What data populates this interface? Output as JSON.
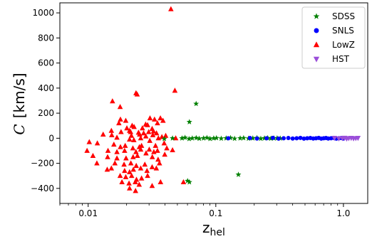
{
  "chart_data": {
    "type": "scatter",
    "xlabel": "z",
    "xlabel_sub": "hel",
    "ylabel_symbol": "C",
    "ylabel_unit": "[km/s]",
    "x_scale": "log",
    "xlim": [
      0.006,
      1.55
    ],
    "ylim": [
      -520,
      1080
    ],
    "x_ticks": [
      {
        "value": 0.01,
        "label": "0.01"
      },
      {
        "value": 0.1,
        "label": "0.1"
      },
      {
        "value": 1.0,
        "label": "1.0"
      }
    ],
    "y_ticks": [
      {
        "value": -400,
        "label": "−400"
      },
      {
        "value": -200,
        "label": "−200"
      },
      {
        "value": 0,
        "label": "0"
      },
      {
        "value": 200,
        "label": "200"
      },
      {
        "value": 400,
        "label": "400"
      },
      {
        "value": 600,
        "label": "600"
      },
      {
        "value": 800,
        "label": "800"
      },
      {
        "value": 1000,
        "label": "1000"
      }
    ],
    "grid": false,
    "legend_position": "top-right",
    "series": [
      {
        "name": "LowZ",
        "marker": "triangle-up",
        "color": "#ff0000",
        "points": [
          [
            0.0445,
            1030
          ],
          [
            0.0478,
            380
          ],
          [
            0.0155,
            295
          ],
          [
            0.0178,
            250
          ],
          [
            0.0237,
            360
          ],
          [
            0.0242,
            350
          ],
          [
            0.0179,
            150
          ],
          [
            0.0197,
            140
          ],
          [
            0.0305,
            160
          ],
          [
            0.0331,
            150
          ],
          [
            0.0368,
            160
          ],
          [
            0.0386,
            140
          ],
          [
            0.0174,
            120
          ],
          [
            0.0282,
            110
          ],
          [
            0.0292,
            105
          ],
          [
            0.0349,
            120
          ],
          [
            0.0221,
            100
          ],
          [
            0.0229,
            90
          ],
          [
            0.0201,
            80
          ],
          [
            0.0266,
            80
          ],
          [
            0.0317,
            75
          ],
          [
            0.0152,
            60
          ],
          [
            0.0181,
            50
          ],
          [
            0.0211,
            60
          ],
          [
            0.0215,
            50
          ],
          [
            0.0248,
            45
          ],
          [
            0.0272,
            40
          ],
          [
            0.0298,
            50
          ],
          [
            0.0325,
            55
          ],
          [
            0.0343,
            40
          ],
          [
            0.0131,
            30
          ],
          [
            0.0153,
            25
          ],
          [
            0.0218,
            20
          ],
          [
            0.0253,
            30
          ],
          [
            0.0283,
            15
          ],
          [
            0.0321,
            25
          ],
          [
            0.0378,
            10
          ],
          [
            0.0405,
            20
          ],
          [
            0.0485,
            0
          ],
          [
            0.0355,
            0
          ],
          [
            0.0258,
            0
          ],
          [
            0.0168,
            5
          ],
          [
            0.0211,
            -10
          ],
          [
            0.0304,
            -20
          ],
          [
            0.0228,
            -15
          ],
          [
            0.0102,
            -30
          ],
          [
            0.0118,
            -40
          ],
          [
            0.0159,
            -50
          ],
          [
            0.0195,
            -60
          ],
          [
            0.0179,
            -70
          ],
          [
            0.0224,
            -80
          ],
          [
            0.0252,
            -70
          ],
          [
            0.0262,
            -60
          ],
          [
            0.0301,
            -90
          ],
          [
            0.0337,
            -60
          ],
          [
            0.0394,
            -40
          ],
          [
            0.0413,
            -80
          ],
          [
            0.0098,
            -100
          ],
          [
            0.0143,
            -100
          ],
          [
            0.0168,
            -110
          ],
          [
            0.0193,
            -100
          ],
          [
            0.0237,
            -110
          ],
          [
            0.0258,
            -90
          ],
          [
            0.0284,
            -120
          ],
          [
            0.0327,
            -110
          ],
          [
            0.0349,
            -100
          ],
          [
            0.0109,
            -140
          ],
          [
            0.0142,
            -150
          ],
          [
            0.0168,
            -160
          ],
          [
            0.0198,
            -160
          ],
          [
            0.0225,
            -150
          ],
          [
            0.0243,
            -140
          ],
          [
            0.0318,
            -150
          ],
          [
            0.0353,
            -170
          ],
          [
            0.0117,
            -200
          ],
          [
            0.0162,
            -200
          ],
          [
            0.0191,
            -210
          ],
          [
            0.0216,
            -200
          ],
          [
            0.0238,
            -220
          ],
          [
            0.0278,
            -210
          ],
          [
            0.0317,
            -230
          ],
          [
            0.0362,
            -200
          ],
          [
            0.0141,
            -250
          ],
          [
            0.0152,
            -240
          ],
          [
            0.0193,
            -260
          ],
          [
            0.0211,
            -270
          ],
          [
            0.0226,
            -250
          ],
          [
            0.0258,
            -240
          ],
          [
            0.0289,
            -260
          ],
          [
            0.0342,
            -240
          ],
          [
            0.0178,
            -300
          ],
          [
            0.0197,
            -310
          ],
          [
            0.0219,
            -300
          ],
          [
            0.0239,
            -330
          ],
          [
            0.0262,
            -320
          ],
          [
            0.0292,
            -300
          ],
          [
            0.0184,
            -350
          ],
          [
            0.0209,
            -360
          ],
          [
            0.0234,
            -350
          ],
          [
            0.0251,
            -370
          ],
          [
            0.0317,
            -380
          ],
          [
            0.0369,
            -350
          ],
          [
            0.0211,
            -400
          ],
          [
            0.0235,
            -420
          ],
          [
            0.0558,
            -350
          ],
          [
            0.0458,
            -95
          ],
          [
            0.0398,
            -130
          ]
        ]
      },
      {
        "name": "SDSS",
        "marker": "star",
        "color": "#008000",
        "points": [
          [
            0.0701,
            275
          ],
          [
            0.0621,
            130
          ],
          [
            0.0458,
            0
          ],
          [
            0.0395,
            -5
          ],
          [
            0.0601,
            -340
          ],
          [
            0.0621,
            -350
          ],
          [
            0.1503,
            -290
          ],
          [
            0.0543,
            0
          ],
          [
            0.0574,
            5
          ],
          [
            0.0617,
            -5
          ],
          [
            0.0654,
            0
          ],
          [
            0.0702,
            3
          ],
          [
            0.0743,
            -3
          ],
          [
            0.0801,
            0
          ],
          [
            0.0852,
            4
          ],
          [
            0.0902,
            -4
          ],
          [
            0.0963,
            0
          ],
          [
            0.1012,
            2
          ],
          [
            0.1103,
            -2
          ],
          [
            0.1204,
            0
          ],
          [
            0.1305,
            3
          ],
          [
            0.1404,
            -3
          ],
          [
            0.1552,
            0
          ],
          [
            0.1652,
            2
          ],
          [
            0.1803,
            -2
          ],
          [
            0.1951,
            0
          ],
          [
            0.2102,
            3
          ],
          [
            0.2252,
            -3
          ],
          [
            0.2404,
            0
          ],
          [
            0.2553,
            2
          ],
          [
            0.2702,
            -2
          ],
          [
            0.2851,
            0
          ],
          [
            0.3023,
            1
          ],
          [
            0.3202,
            -1
          ]
        ]
      },
      {
        "name": "SNLS",
        "marker": "circle",
        "color": "#0000ff",
        "points": [
          [
            0.1252,
            0
          ],
          [
            0.1851,
            2
          ],
          [
            0.2102,
            -2
          ],
          [
            0.2501,
            0
          ],
          [
            0.2802,
            3
          ],
          [
            0.3103,
            -3
          ],
          [
            0.3401,
            0
          ],
          [
            0.3702,
            2
          ],
          [
            0.4003,
            -2
          ],
          [
            0.4301,
            0
          ],
          [
            0.4602,
            3
          ],
          [
            0.4903,
            -3
          ],
          [
            0.5202,
            0
          ],
          [
            0.5503,
            2
          ],
          [
            0.5802,
            -2
          ],
          [
            0.6101,
            0
          ],
          [
            0.6402,
            3
          ],
          [
            0.6701,
            -3
          ],
          [
            0.7003,
            0
          ],
          [
            0.7302,
            2
          ],
          [
            0.7603,
            -2
          ],
          [
            0.8002,
            0
          ],
          [
            0.8401,
            3
          ],
          [
            0.8802,
            -3
          ],
          [
            0.9202,
            0
          ],
          [
            0.9601,
            2
          ],
          [
            1.0002,
            -2
          ]
        ]
      },
      {
        "name": "HST",
        "marker": "triangle-down",
        "color": "#9b4fd9",
        "points": [
          [
            0.8502,
            2
          ],
          [
            0.9203,
            -2
          ],
          [
            0.9801,
            0
          ],
          [
            1.0201,
            3
          ],
          [
            1.0602,
            -3
          ],
          [
            1.1003,
            0
          ],
          [
            1.1502,
            2
          ],
          [
            1.2001,
            -2
          ],
          [
            1.2502,
            0
          ],
          [
            1.3003,
            2
          ]
        ]
      }
    ]
  }
}
